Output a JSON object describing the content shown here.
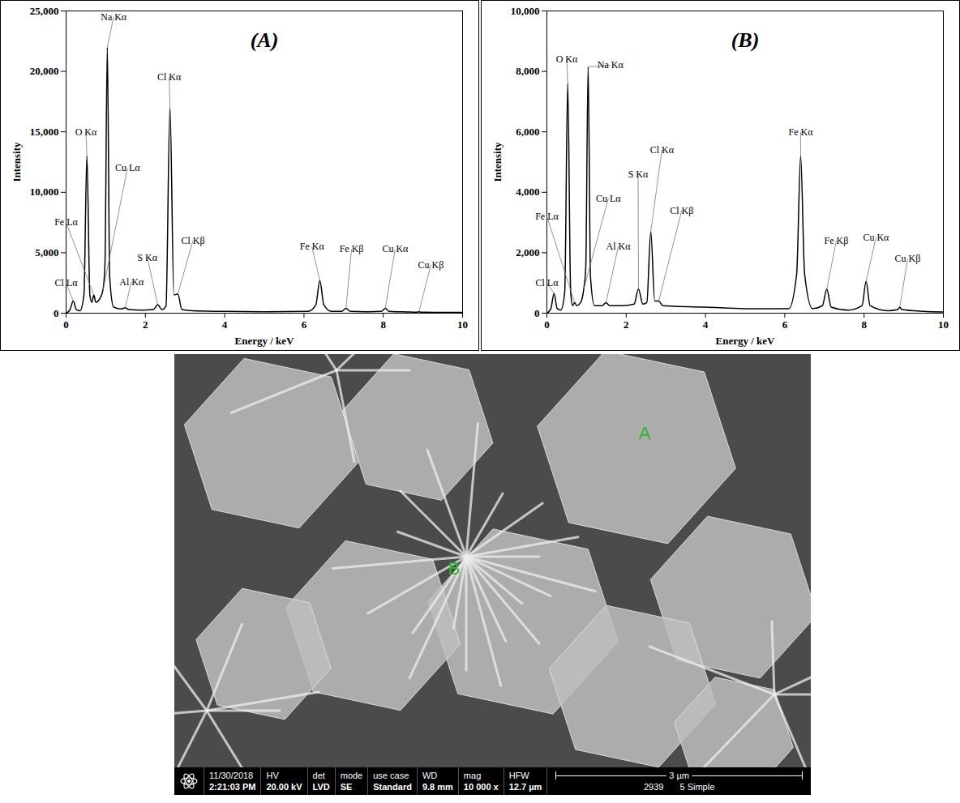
{
  "chart_data": [
    {
      "type": "line",
      "title": "(A)",
      "x_label": "Energy / keV",
      "y_label": "Intensity",
      "color": "#000000",
      "x": [
        0,
        0.1,
        0.18,
        0.26,
        0.35,
        0.45,
        0.525,
        0.6,
        0.65,
        0.7,
        0.75,
        0.85,
        0.93,
        0.98,
        1.04,
        1.1,
        1.2,
        1.4,
        1.49,
        1.58,
        1.9,
        2.2,
        2.31,
        2.42,
        2.52,
        2.62,
        2.72,
        2.82,
        2.92,
        3.2,
        4,
        5,
        6.1,
        6.3,
        6.4,
        6.5,
        6.7,
        6.95,
        7.06,
        7.17,
        7.6,
        7.95,
        8.05,
        8.15,
        8.6,
        8.85,
        8.9,
        8.95,
        9.5,
        10
      ],
      "values": [
        0,
        300,
        1000,
        300,
        200,
        1500,
        13000,
        1500,
        900,
        1500,
        900,
        1200,
        1900,
        4000,
        22000,
        3000,
        500,
        350,
        450,
        300,
        250,
        300,
        700,
        300,
        600,
        17000,
        1500,
        1600,
        300,
        200,
        150,
        120,
        150,
        700,
        2700,
        700,
        150,
        150,
        400,
        150,
        120,
        150,
        400,
        150,
        100,
        80,
        120,
        80,
        70,
        60
      ],
      "xlim": [
        0,
        10
      ],
      "xticks": [
        0,
        2,
        4,
        6,
        8,
        10
      ],
      "ylim": [
        0,
        25000
      ],
      "yticks": [
        0,
        {
          "value": 5000,
          "label": "5,000"
        },
        {
          "value": 10000,
          "label": "10,000"
        },
        {
          "value": 15000,
          "label": "15,000"
        },
        {
          "value": 20000,
          "label": "20,000"
        },
        {
          "value": 25000,
          "label": "25,000"
        }
      ],
      "annotations": [
        {
          "text": "Na Kα",
          "x": 1.2,
          "y": 24500,
          "peak": [
            1.04,
            22000
          ]
        },
        {
          "text": "O Kα",
          "x": 0.5,
          "y": 15000,
          "peak": [
            0.525,
            13000
          ]
        },
        {
          "text": "Cu Lα",
          "x": 1.55,
          "y": 12000,
          "peak": [
            0.93,
            1900
          ]
        },
        {
          "text": "Fe Lα",
          "x": 0,
          "y": 7500,
          "peak": [
            0.7,
            1500
          ]
        },
        {
          "text": "Cl Lα",
          "x": 0,
          "y": 2500,
          "peak": [
            0.18,
            1000
          ]
        },
        {
          "text": "Al Kα",
          "x": 1.65,
          "y": 2600,
          "peak": [
            1.49,
            450
          ]
        },
        {
          "text": "S Kα",
          "x": 2.05,
          "y": 4600,
          "peak": [
            2.31,
            700
          ]
        },
        {
          "text": "Cl Kα",
          "x": 2.6,
          "y": 19500,
          "peak": [
            2.62,
            17000
          ]
        },
        {
          "text": "Cl Kβ",
          "x": 3.2,
          "y": 6000,
          "peak": [
            2.82,
            1600
          ]
        },
        {
          "text": "Fe Kα",
          "x": 6.2,
          "y": 5500,
          "peak": [
            6.4,
            2700
          ]
        },
        {
          "text": "Fe Kβ",
          "x": 7.2,
          "y": 5300,
          "peak": [
            7.06,
            400
          ]
        },
        {
          "text": "Cu Kα",
          "x": 8.3,
          "y": 5300,
          "peak": [
            8.05,
            400
          ]
        },
        {
          "text": "Cu Kβ",
          "x": 9.2,
          "y": 4000,
          "peak": [
            8.9,
            120
          ]
        }
      ]
    },
    {
      "type": "line",
      "title": "(B)",
      "x_label": "Energy / keV",
      "y_label": "Intensity",
      "color": "#000000",
      "x": [
        0,
        0.1,
        0.18,
        0.26,
        0.35,
        0.45,
        0.525,
        0.6,
        0.65,
        0.7,
        0.75,
        0.85,
        0.93,
        0.98,
        1.04,
        1.1,
        1.2,
        1.4,
        1.49,
        1.58,
        1.9,
        2.2,
        2.31,
        2.42,
        2.52,
        2.62,
        2.72,
        2.82,
        2.92,
        3.2,
        4,
        5,
        6.1,
        6.3,
        6.4,
        6.5,
        6.7,
        6.95,
        7.06,
        7.17,
        7.6,
        7.95,
        8.05,
        8.15,
        8.6,
        8.85,
        8.9,
        8.95,
        9.5,
        10
      ],
      "values": [
        0,
        150,
        650,
        150,
        100,
        700,
        7600,
        700,
        250,
        350,
        250,
        350,
        800,
        1500,
        8150,
        1200,
        250,
        250,
        350,
        250,
        250,
        300,
        800,
        300,
        350,
        2700,
        400,
        400,
        250,
        230,
        200,
        150,
        150,
        1300,
        5200,
        1300,
        150,
        250,
        800,
        200,
        100,
        250,
        1050,
        250,
        80,
        120,
        200,
        120,
        60,
        40
      ],
      "xlim": [
        0,
        10
      ],
      "xticks": [
        0,
        2,
        4,
        6,
        8,
        10
      ],
      "ylim": [
        0,
        10000
      ],
      "yticks": [
        0,
        {
          "value": 2000,
          "label": "2,000"
        },
        {
          "value": 4000,
          "label": "4,000"
        },
        {
          "value": 6000,
          "label": "6,000"
        },
        {
          "value": 8000,
          "label": "8,000"
        },
        {
          "value": 10000,
          "label": "10,000"
        }
      ],
      "annotations": [
        {
          "text": "O Kα",
          "x": 0.5,
          "y": 8400,
          "peak": [
            0.525,
            7600
          ]
        },
        {
          "text": "Na Kα",
          "x": 1.6,
          "y": 8200,
          "peak": [
            1.04,
            8150
          ]
        },
        {
          "text": "Cu Lα",
          "x": 1.55,
          "y": 3800,
          "peak": [
            0.93,
            800
          ]
        },
        {
          "text": "Fe Lα",
          "x": 0,
          "y": 3200,
          "peak": [
            0.7,
            350
          ]
        },
        {
          "text": "Cl Lα",
          "x": 0,
          "y": 1000,
          "peak": [
            0.18,
            650
          ]
        },
        {
          "text": "Al Kα",
          "x": 1.8,
          "y": 2200,
          "peak": [
            1.49,
            350
          ]
        },
        {
          "text": "S Kα",
          "x": 2.3,
          "y": 4600,
          "peak": [
            2.31,
            800
          ]
        },
        {
          "text": "Cl Kα",
          "x": 2.9,
          "y": 5400,
          "peak": [
            2.62,
            2700
          ]
        },
        {
          "text": "Cl Kβ",
          "x": 3.4,
          "y": 3400,
          "peak": [
            2.82,
            400
          ]
        },
        {
          "text": "Fe Kα",
          "x": 6.4,
          "y": 6000,
          "peak": [
            6.4,
            5200
          ]
        },
        {
          "text": "Fe Kβ",
          "x": 7.3,
          "y": 2400,
          "peak": [
            7.06,
            800
          ]
        },
        {
          "text": "Cu Kα",
          "x": 8.3,
          "y": 2500,
          "peak": [
            8.05,
            1050
          ]
        },
        {
          "text": "Cu Kβ",
          "x": 9.1,
          "y": 1800,
          "peak": [
            8.9,
            200
          ]
        }
      ]
    }
  ],
  "micrograph": {
    "markers": [
      "A",
      "B"
    ],
    "info_bar": [
      {
        "label": "11/30/2018",
        "value": "2:21:03 PM"
      },
      {
        "label": "HV",
        "value": "20.00 kV"
      },
      {
        "label": "det",
        "value": "LVD"
      },
      {
        "label": "mode",
        "value": "SE"
      },
      {
        "label": "use case",
        "value": "Standard"
      },
      {
        "label": "WD",
        "value": "9.8 mm"
      },
      {
        "label": "mag",
        "value": "10 000 x"
      },
      {
        "label": "HFW",
        "value": "12.7 µm"
      }
    ],
    "scale_bar": "3 µm",
    "footer": [
      "2939",
      "5 Simple"
    ]
  }
}
